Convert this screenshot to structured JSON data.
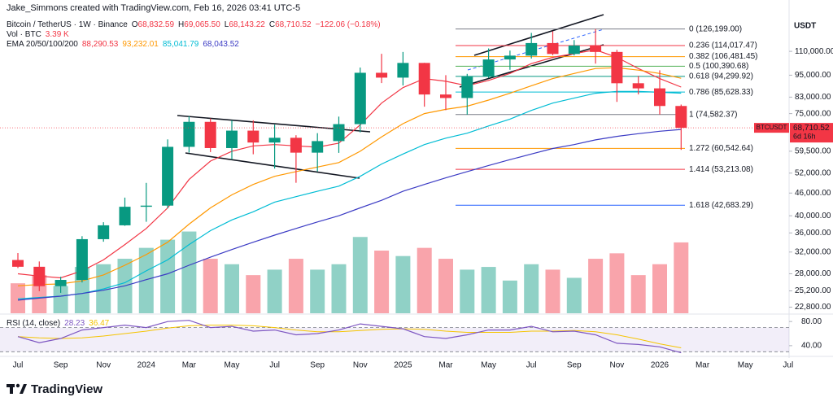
{
  "header": {
    "credit": "Jake_Simmons created with TradingView.com, Feb 16, 2026 03:41 UTC-5",
    "symbol": "Bitcoin / TetherUS · 1W · Binance",
    "ohlc": [
      {
        "key": "O",
        "value": "68,832.59"
      },
      {
        "key": "H",
        "value": "69,065.50"
      },
      {
        "key": "L",
        "value": "68,143.22"
      },
      {
        "key": "C",
        "value": "68,710.52"
      }
    ],
    "change": "−122.06 (−0.18%)",
    "vol_label": "Vol · BTC",
    "vol_value": "3.39 K",
    "ema_label": "EMA 20/50/100/200",
    "rsi_label": "RSI (14, close)",
    "currency": "USDT"
  },
  "chart_data": {
    "type": "candlestick",
    "categories": [
      "Jul",
      null,
      "Sep",
      null,
      "Nov",
      null,
      "2024",
      null,
      "Mar",
      null,
      "May",
      null,
      "Jul",
      null,
      "Sep",
      null,
      "Nov",
      null,
      "2025",
      null,
      "Mar",
      null,
      "May",
      null,
      "Jul",
      null,
      "Sep",
      null,
      "Nov",
      null,
      "2026",
      null,
      "Mar",
      null,
      "May",
      null,
      "Jul"
    ],
    "open": [
      30470,
      29230,
      25940,
      26960,
      34640,
      37720,
      42280,
      42580,
      61130,
      71290,
      60670,
      67540,
      62770,
      64630,
      58980,
      63330,
      70290,
      96410,
      93580,
      102430,
      84350,
      82550,
      94170,
      104640,
      107140,
      115760,
      108250,
      114050,
      109600,
      90400,
      87600,
      78600,
      null,
      null,
      null,
      null,
      null
    ],
    "high": [
      31800,
      30200,
      27480,
      35280,
      38450,
      44730,
      48970,
      64000,
      73780,
      72800,
      71980,
      71950,
      70080,
      65660,
      66500,
      73620,
      99590,
      108350,
      109590,
      102500,
      95000,
      95760,
      111980,
      110530,
      123220,
      124470,
      117900,
      126200,
      111000,
      94600,
      97900,
      79300,
      null,
      null,
      null,
      null,
      null
    ],
    "low": [
      29000,
      25160,
      24900,
      26540,
      34100,
      37600,
      38550,
      41880,
      59000,
      59190,
      56550,
      58400,
      53490,
      49000,
      52550,
      58900,
      66830,
      90500,
      89160,
      78260,
      76600,
      74500,
      93350,
      98200,
      105250,
      107400,
      107270,
      102000,
      80600,
      84400,
      74600,
      60000,
      null,
      null,
      null,
      null,
      null
    ],
    "close": [
      29230,
      25940,
      26960,
      34640,
      37720,
      42280,
      42580,
      61130,
      71290,
      60670,
      67540,
      62770,
      64630,
      58980,
      63330,
      70290,
      96410,
      93580,
      102430,
      84350,
      82550,
      94170,
      104640,
      107140,
      115760,
      108250,
      114050,
      109600,
      90400,
      87600,
      78600,
      68710.52,
      null,
      null,
      null,
      null,
      null
    ],
    "volume": [
      550,
      700,
      500,
      850,
      900,
      1000,
      1200,
      1350,
      1500,
      1000,
      900,
      700,
      800,
      1000,
      800,
      900,
      1400,
      1150,
      1050,
      1200,
      1000,
      800,
      850,
      600,
      900,
      800,
      650,
      1000,
      1100,
      700,
      900,
      1300,
      null,
      null,
      null,
      null,
      null
    ],
    "volume_lim": [
      0,
      5600
    ],
    "up_color": "#089981",
    "down_color": "#f23645",
    "log_scale": true,
    "ylim": [
      21960,
      143500
    ],
    "yticks": [
      {
        "value": 110000,
        "label": "110,000.00"
      },
      {
        "value": 95000,
        "label": "95,000.00"
      },
      {
        "value": 83000,
        "label": "83,000.00"
      },
      {
        "value": 75000,
        "label": "75,000.00"
      },
      {
        "value": 59500,
        "label": "59,500.00"
      },
      {
        "value": 52000,
        "label": "52,000.00"
      },
      {
        "value": 46000,
        "label": "46,000.00"
      },
      {
        "value": 40000,
        "label": "40,000.00"
      },
      {
        "value": 36000,
        "label": "36,000.00"
      },
      {
        "value": 32000,
        "label": "32,000.00"
      },
      {
        "value": 28000,
        "label": "28,000.00"
      },
      {
        "value": 25200,
        "label": "25,200.00"
      },
      {
        "value": 22800,
        "label": "22,800.00"
      }
    ],
    "series": [
      {
        "color": "#f23645",
        "legend_value": "88,290.53",
        "values": [
          28000,
          27600,
          27300,
          28500,
          30500,
          33500,
          37000,
          42000,
          50000,
          56000,
          59500,
          61500,
          62000,
          61500,
          61000,
          62500,
          70000,
          80000,
          88000,
          93000,
          91500,
          89000,
          92000,
          96000,
          102000,
          106000,
          108500,
          111000,
          106000,
          99000,
          93000,
          88290.53,
          null,
          null,
          null,
          null,
          null
        ]
      },
      {
        "color": "#ff9800",
        "legend_value": "93,232.01",
        "values": [
          26000,
          26200,
          26300,
          26800,
          27800,
          29500,
          31500,
          34000,
          38000,
          42000,
          45500,
          48500,
          51000,
          52500,
          54000,
          55500,
          59500,
          65000,
          70500,
          75000,
          77000,
          78500,
          81500,
          85000,
          89000,
          93000,
          96000,
          99000,
          99500,
          98000,
          96000,
          93232.01,
          null,
          null,
          null,
          null,
          null
        ]
      },
      {
        "color": "#00bcd4",
        "legend_value": "85,041.79",
        "values": [
          24000,
          24200,
          24400,
          24800,
          25500,
          26500,
          28500,
          30500,
          33500,
          36500,
          39000,
          41000,
          43500,
          45000,
          46500,
          48000,
          51000,
          55000,
          58500,
          62000,
          64500,
          66500,
          69500,
          72500,
          76500,
          80000,
          82500,
          85000,
          86000,
          86000,
          85500,
          85041.79,
          null,
          null,
          null,
          null,
          null
        ]
      },
      {
        "color": "#3b3bc4",
        "legend_value": "68,043.52",
        "values": [
          23800,
          24100,
          24400,
          24800,
          25300,
          26000,
          27000,
          28000,
          29500,
          31000,
          32500,
          34000,
          35500,
          37000,
          38500,
          40000,
          42000,
          44000,
          46500,
          48500,
          50500,
          52500,
          54500,
          56500,
          58500,
          60500,
          62000,
          63800,
          65200,
          66300,
          67300,
          68043.52,
          null,
          null,
          null,
          null,
          null
        ]
      }
    ],
    "price_tag": {
      "symbol": "BTCUSDT",
      "value": 68710.52,
      "label": "68,710.52",
      "countdown": "6d 16h",
      "color": "#f23645"
    },
    "fib_levels": [
      {
        "value": 126199,
        "label": "0 (126,199.00)",
        "color": "#787b86"
      },
      {
        "value": 114017.47,
        "label": "0.236 (114,017.47)",
        "color": "#f23645"
      },
      {
        "value": 106481.45,
        "label": "0.382 (106,481.45)",
        "color": "#ff9800"
      },
      {
        "value": 100390.68,
        "label": "0.5 (100,390.68)",
        "color": "#4caf50"
      },
      {
        "value": 94299.92,
        "label": "0.618 (94,299.92)",
        "color": "#089981"
      },
      {
        "value": 85628.33,
        "label": "0.786 (85,628.33)",
        "color": "#00bcd4"
      },
      {
        "value": 74582.37,
        "label": "1 (74,582.37)",
        "color": "#787b86"
      },
      {
        "value": 60542.64,
        "label": "1.272 (60,542.64)",
        "color": "#ff9800"
      },
      {
        "value": 53213.08,
        "label": "1.414 (53,213.08)",
        "color": "#f23645"
      },
      {
        "value": 42683.29,
        "label": "1.618 (42,683.29)",
        "color": "#2962ff"
      }
    ],
    "rsi": {
      "color": "#7e57c2",
      "ma_color": "#f5c400",
      "legend_values": [
        "28.23",
        "36.47"
      ],
      "values": [
        55,
        45,
        52,
        66,
        70,
        74,
        70,
        80,
        82,
        70,
        72,
        64,
        66,
        58,
        60,
        66,
        76,
        72,
        68,
        55,
        52,
        58,
        66,
        66,
        72,
        63,
        64,
        58,
        44,
        42,
        38,
        28.23,
        null,
        null,
        null,
        null,
        null
      ],
      "ma": [
        55,
        53,
        52,
        53,
        56,
        60,
        64,
        69,
        73,
        74,
        74,
        73,
        70,
        66,
        63,
        63,
        65,
        67,
        68,
        67,
        64,
        62,
        62,
        62,
        64,
        64,
        65,
        63,
        58,
        51,
        43,
        36.47,
        null,
        null,
        null,
        null,
        null
      ],
      "ylim": [
        25,
        91
      ],
      "yticks": [
        {
          "value": 80,
          "label": "80.00"
        },
        {
          "value": 40,
          "label": "40.00"
        }
      ],
      "bands": [
        70,
        30
      ]
    }
  },
  "footer": {
    "logo": "TradingView"
  }
}
